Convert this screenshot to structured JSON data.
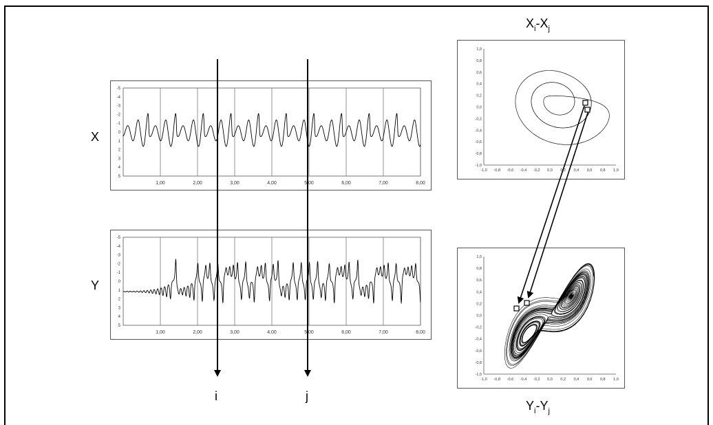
{
  "labels": {
    "x_series": "X",
    "y_series": "Y",
    "arrow_i": "i",
    "arrow_j": "j"
  },
  "plots": {
    "xx": {
      "title_main": "X",
      "title_sub1": "i",
      "title_dash": "-X",
      "title_sub2": "j"
    },
    "yy": {
      "title_main": "Y",
      "title_sub1": "i",
      "title_dash": "-Y",
      "title_sub2": "j"
    }
  },
  "time_axis_ticks": [
    "1,00",
    "2,00",
    "3,00",
    "4,00",
    "5,00",
    "6,00",
    "7,00",
    "8,00"
  ],
  "series_y_ticks": [
    "-5",
    "-4",
    "-3",
    "-2",
    "-1",
    "0",
    "1",
    "2",
    "3",
    "4",
    "5"
  ],
  "phase_ticks": [
    "-1,0",
    "-0,8",
    "-0,6",
    "-0,4",
    "-0,2",
    "0,0",
    "0,2",
    "0,4",
    "0,6",
    "0,8",
    "1,0"
  ],
  "colors": {
    "ink": "#000000",
    "grid": "#555555",
    "panel_border": "#555555"
  }
}
